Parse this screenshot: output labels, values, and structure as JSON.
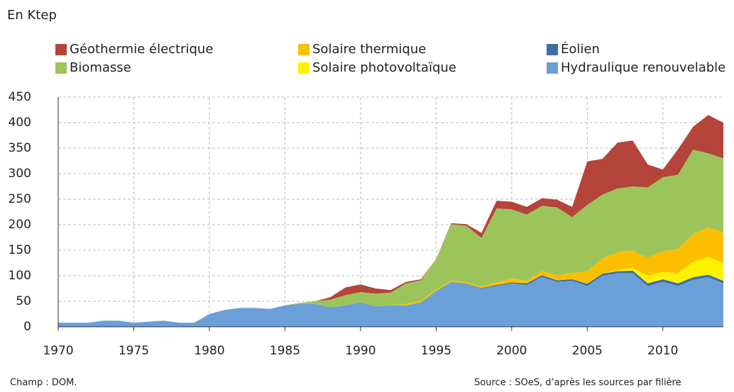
{
  "chart_data": {
    "type": "stacked_area",
    "unit_label": "En  Ktep",
    "note": "Champ : DOM.",
    "source": "Source : SOeS, d’après les sources par filière",
    "x": [
      1970,
      1971,
      1972,
      1973,
      1974,
      1975,
      1976,
      1977,
      1978,
      1979,
      1980,
      1981,
      1982,
      1983,
      1984,
      1985,
      1986,
      1987,
      1988,
      1989,
      1990,
      1991,
      1992,
      1993,
      1994,
      1995,
      1996,
      1997,
      1998,
      1999,
      2000,
      2001,
      2002,
      2003,
      2004,
      2005,
      2006,
      2007,
      2008,
      2009,
      2010,
      2011,
      2012,
      2013,
      2014
    ],
    "xlim": [
      1970,
      2014
    ],
    "xticks": [
      1970,
      1975,
      1980,
      1985,
      1990,
      1995,
      2000,
      2005,
      2010
    ],
    "ylim": [
      0,
      450
    ],
    "yticks": [
      0,
      50,
      100,
      150,
      200,
      250,
      300,
      350,
      400,
      450
    ],
    "grid": true,
    "series": [
      {
        "name": "Hydraulique renouvelable",
        "color": "#6a9fd8",
        "values": [
          8,
          8,
          8,
          12,
          12,
          8,
          10,
          12,
          8,
          8,
          25,
          33,
          37,
          37,
          35,
          42,
          45,
          45,
          38,
          42,
          48,
          40,
          42,
          42,
          48,
          70,
          88,
          85,
          75,
          80,
          85,
          82,
          98,
          88,
          90,
          80,
          100,
          105,
          105,
          80,
          88,
          80,
          92,
          97,
          85
        ]
      },
      {
        "name": "Éolien",
        "color": "#3a6ea5",
        "values": [
          0,
          0,
          0,
          0,
          0,
          0,
          0,
          0,
          0,
          0,
          0,
          0,
          0,
          0,
          0,
          0,
          0,
          0,
          0,
          0,
          0,
          0,
          0,
          0,
          0,
          0,
          0,
          0,
          1,
          2,
          2,
          3,
          3,
          3,
          3,
          4,
          4,
          4,
          5,
          5,
          5,
          5,
          5,
          5,
          5
        ]
      },
      {
        "name": "Solaire photovoltaïque",
        "color": "#fff200",
        "values": [
          0,
          0,
          0,
          0,
          0,
          0,
          0,
          0,
          0,
          0,
          0,
          0,
          0,
          0,
          0,
          0,
          0,
          0,
          0,
          0,
          0,
          0,
          0,
          0,
          0,
          0,
          0,
          0,
          0,
          0,
          0,
          0,
          0,
          0,
          0,
          0,
          0,
          2,
          5,
          15,
          15,
          20,
          30,
          35,
          35
        ]
      },
      {
        "name": "Solaire thermique",
        "color": "#fbbf00",
        "values": [
          0,
          0,
          0,
          0,
          0,
          0,
          0,
          0,
          0,
          0,
          0,
          0,
          0,
          0,
          0,
          0,
          0,
          0,
          0,
          0,
          0,
          0,
          0,
          3,
          3,
          3,
          3,
          3,
          3,
          5,
          8,
          5,
          8,
          10,
          12,
          25,
          30,
          35,
          35,
          35,
          40,
          48,
          55,
          58,
          60
        ]
      },
      {
        "name": "Biomasse",
        "color": "#9bc55a",
        "values": [
          0,
          0,
          0,
          0,
          0,
          0,
          0,
          0,
          0,
          0,
          0,
          0,
          0,
          0,
          0,
          0,
          2,
          5,
          15,
          20,
          20,
          25,
          25,
          40,
          40,
          60,
          110,
          110,
          95,
          145,
          135,
          130,
          128,
          133,
          110,
          130,
          125,
          125,
          125,
          138,
          145,
          145,
          165,
          145,
          145
        ]
      },
      {
        "name": "Géothermie électrique",
        "color": "#b5443a",
        "values": [
          0,
          0,
          0,
          0,
          0,
          0,
          0,
          0,
          0,
          0,
          0,
          0,
          0,
          0,
          0,
          0,
          0,
          0,
          5,
          15,
          15,
          10,
          5,
          3,
          2,
          0,
          2,
          3,
          10,
          15,
          15,
          15,
          15,
          15,
          20,
          85,
          70,
          90,
          90,
          45,
          15,
          50,
          45,
          75,
          70
        ]
      }
    ]
  }
}
